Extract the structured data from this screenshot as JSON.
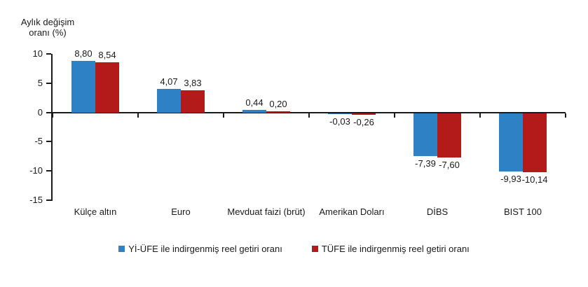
{
  "chart_data": {
    "type": "bar",
    "title": "Aylık değişim oranı (%)",
    "title_lines": [
      "Aylık değişim",
      "oranı (%)"
    ],
    "categories": [
      "Külçe altın",
      "Euro",
      "Mevduat faizi (brüt)",
      "Amerikan Doları",
      "DİBS",
      "BIST 100"
    ],
    "series": [
      {
        "name": "Yİ-ÜFE ile indirgenmiş reel getiri oranı",
        "color": "#2E81C4",
        "values": [
          8.8,
          4.07,
          0.44,
          -0.03,
          -7.39,
          -9.93
        ],
        "labels": [
          "8,80",
          "4,07",
          "0,44",
          "-0,03",
          "-7,39",
          "-9,93"
        ]
      },
      {
        "name": "TÜFE ile indirgenmiş reel getiri oranı",
        "color": "#B31A1A",
        "values": [
          8.54,
          3.83,
          0.2,
          -0.26,
          -7.6,
          -10.14
        ],
        "labels": [
          "8,54",
          "3,83",
          "0,20",
          "-0,26",
          "-7,60",
          "-10,14"
        ]
      }
    ],
    "y_ticks": [
      10,
      5,
      0,
      -5,
      -10,
      -15
    ],
    "ylim": [
      -15,
      10
    ],
    "xlabel": "",
    "ylabel": "Aylık değişim oranı (%)",
    "grid": false,
    "legend_position": "bottom",
    "colors": {
      "accent_blue": "#2E81C4",
      "accent_red": "#B31A1A",
      "axis": "#1a1a1a"
    }
  }
}
